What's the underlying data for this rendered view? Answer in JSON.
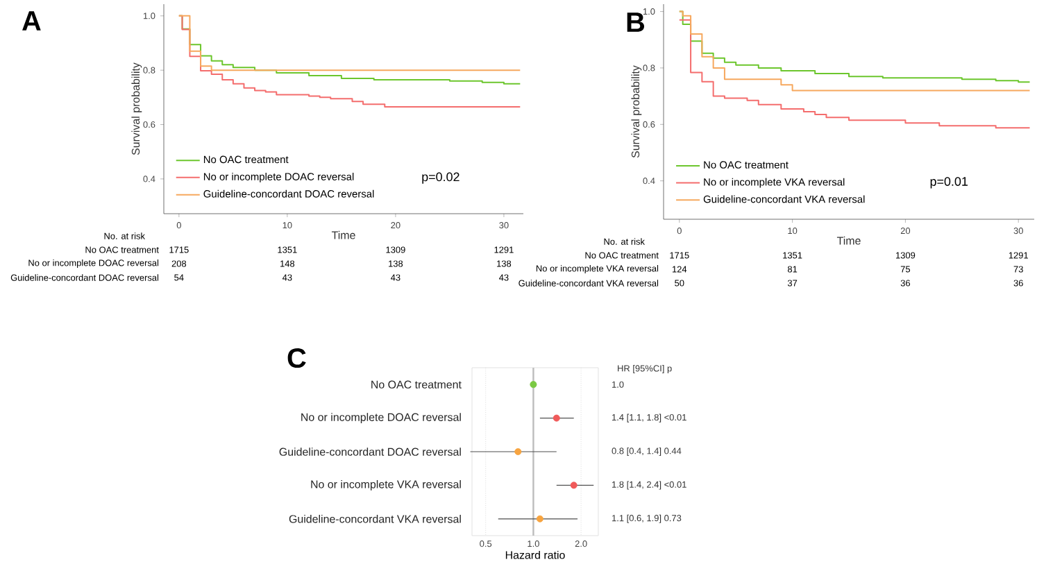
{
  "chart_data": [
    {
      "type": "step",
      "title": "A",
      "xlabel": "Time",
      "ylabel": "Survival probability",
      "xlim": [
        -1.4,
        31.8
      ],
      "ylim": [
        0.272,
        1.043
      ],
      "xticks": [
        0,
        10,
        20,
        30
      ],
      "yticks": [
        {
          "value": 0.4,
          "label": "0.4"
        },
        {
          "value": 0.6,
          "label": "0.6"
        },
        {
          "value": 0.8,
          "label": "0.8"
        },
        {
          "value": 1,
          "label": "1.0"
        }
      ],
      "legend": "bottom left",
      "series": [
        {
          "name": "No OAC treatment",
          "color": "#6cc62d",
          "x": [
            0,
            0.3,
            1,
            2,
            3,
            4,
            5,
            7,
            9,
            12,
            15,
            18,
            25,
            28,
            30,
            31.5
          ],
          "values": [
            1.0,
            0.952,
            0.894,
            0.853,
            0.834,
            0.82,
            0.81,
            0.8,
            0.79,
            0.78,
            0.77,
            0.765,
            0.76,
            0.755,
            0.75,
            0.75
          ]
        },
        {
          "name": "No or incomplete DOAC reversal",
          "color": "#f46d6d",
          "x": [
            0,
            0.3,
            1,
            2,
            3,
            4,
            5,
            6,
            7,
            8,
            9,
            12,
            13,
            14,
            16,
            17,
            19,
            31.5
          ],
          "values": [
            1.0,
            0.95,
            0.851,
            0.798,
            0.785,
            0.765,
            0.75,
            0.735,
            0.725,
            0.72,
            0.71,
            0.705,
            0.7,
            0.695,
            0.685,
            0.675,
            0.665,
            0.665
          ]
        },
        {
          "name": "Guideline-concordant DOAC reversal",
          "color": "#f6a85e",
          "x": [
            0,
            1,
            2,
            3,
            31.5
          ],
          "values": [
            1.0,
            0.87,
            0.815,
            0.8,
            0.8
          ]
        }
      ],
      "annotations": [
        "p=0.02",
        "No. at risk",
        "No OAC treatment",
        "1715",
        "1351",
        "1309",
        "1291",
        "No or incomplete DOAC reversal",
        "208",
        "148",
        "138",
        "138",
        "Guideline-concordant DOAC reversal",
        "54",
        "43",
        "43",
        "43"
      ]
    },
    {
      "type": "step",
      "title": "B",
      "xlabel": "Time",
      "ylabel": "Survival probability",
      "xlim": [
        -1.4,
        31.4
      ],
      "ylim": [
        0.264,
        1.026
      ],
      "xticks": [
        0,
        10,
        20,
        30
      ],
      "yticks": [
        {
          "value": 0.4,
          "label": "0.4"
        },
        {
          "value": 0.6,
          "label": "0.6"
        },
        {
          "value": 0.8,
          "label": "0.8"
        },
        {
          "value": 1,
          "label": "1.0"
        }
      ],
      "legend": "bottom left",
      "series": [
        {
          "name": "No OAC treatment",
          "color": "#6cc62d",
          "x": [
            0,
            0.3,
            1,
            2,
            3,
            4,
            5,
            7,
            9,
            12,
            15,
            18,
            25,
            28,
            30,
            31
          ],
          "values": [
            1.0,
            0.955,
            0.895,
            0.852,
            0.835,
            0.82,
            0.81,
            0.8,
            0.79,
            0.78,
            0.77,
            0.765,
            0.76,
            0.755,
            0.75,
            0.75
          ]
        },
        {
          "name": "No or incomplete VKA reversal",
          "color": "#f46d6d",
          "x": [
            0,
            1,
            2,
            3,
            4,
            6,
            7,
            9,
            11,
            12,
            13,
            15,
            20,
            23,
            28,
            31
          ],
          "values": [
            0.97,
            0.784,
            0.751,
            0.7,
            0.693,
            0.685,
            0.67,
            0.655,
            0.645,
            0.635,
            0.625,
            0.615,
            0.605,
            0.595,
            0.588,
            0.588
          ]
        },
        {
          "name": "Guideline-concordant VKA reversal",
          "color": "#f6a85e",
          "x": [
            0,
            0.3,
            1,
            2,
            3,
            4,
            9,
            10,
            31
          ],
          "values": [
            1.0,
            0.985,
            0.92,
            0.84,
            0.8,
            0.76,
            0.74,
            0.72,
            0.72
          ]
        }
      ],
      "annotations": [
        "p=0.01",
        "No. at risk",
        "No OAC treatment",
        "1715",
        "1351",
        "1309",
        "1291",
        "No or incomplete VKA reversal",
        "124",
        "81",
        "75",
        "73",
        "Guideline-concordant VKA reversal",
        "50",
        "37",
        "36",
        "36"
      ]
    },
    {
      "type": "scatter",
      "title": "C",
      "orientation": "horizontal",
      "xlabel": "Hazard ratio",
      "log": "x",
      "xlim": [
        0.41,
        2.57
      ],
      "xticks": [
        {
          "value": 0.5,
          "label": "0.5"
        },
        {
          "value": 1,
          "label": "1.0"
        },
        {
          "value": 2,
          "label": "2.0"
        }
      ],
      "grid": "x",
      "categories": [
        "No OAC treatment",
        "No or incomplete DOAC reversal",
        "Guideline-concordant DOAC reversal",
        "No or incomplete VKA reversal",
        "Guideline-concordant VKA reversal"
      ],
      "values": [
        1.0,
        1.4,
        0.8,
        1.8,
        1.1
      ],
      "errors": [
        null,
        [
          1.1,
          1.8
        ],
        [
          0.4,
          1.4
        ],
        [
          1.4,
          2.4
        ],
        [
          0.6,
          1.9
        ]
      ],
      "colors": [
        "#7ac943",
        "#f05a5a",
        "#f7a440",
        "#f05a5a",
        "#f7a440"
      ],
      "ref_lines": [
        {
          "axis": "x",
          "value": 1,
          "color": "#bdbdbd"
        }
      ],
      "annotations": [
        "HR [95%CI] p",
        "1.0",
        "1.4 [1.1, 1.8] <0.01",
        "0.8 [0.4, 1.4] 0.44",
        "1.8 [1.4, 2.4] <0.01",
        "1.1 [0.6, 1.9] 0.73"
      ]
    }
  ]
}
